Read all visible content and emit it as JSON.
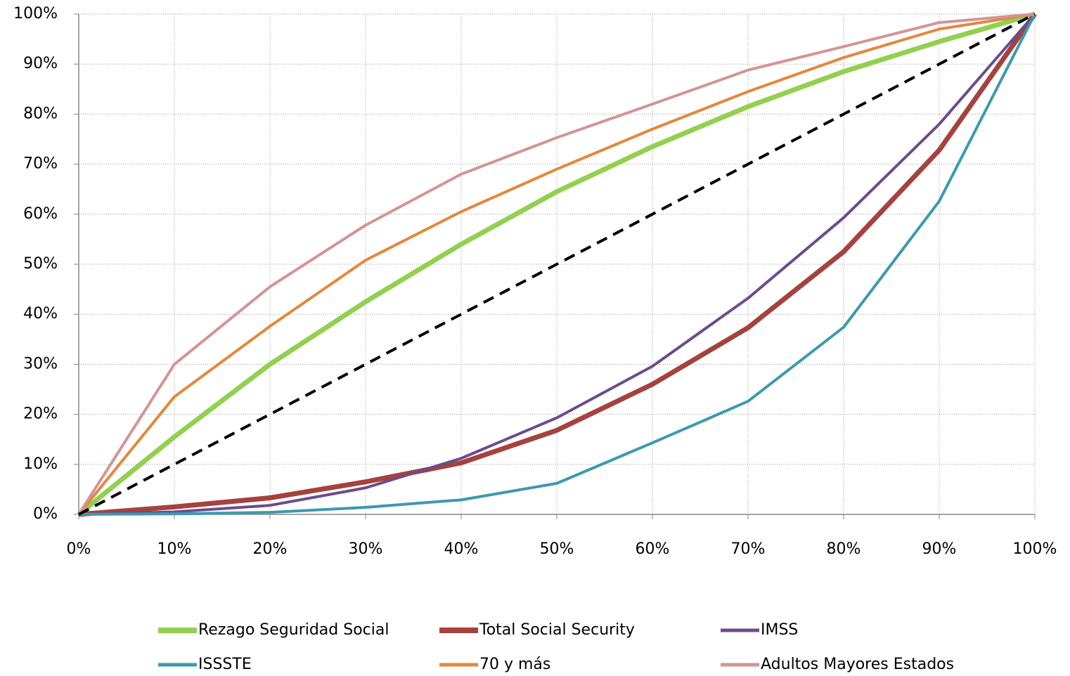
{
  "chart_data": {
    "type": "line",
    "x": [
      0,
      10,
      20,
      30,
      40,
      50,
      60,
      70,
      80,
      90,
      100
    ],
    "xlim": [
      0,
      100
    ],
    "xticks": [
      {
        "value": 0,
        "label": "0%"
      },
      {
        "value": 10,
        "label": "10%"
      },
      {
        "value": 20,
        "label": "20%"
      },
      {
        "value": 30,
        "label": "30%"
      },
      {
        "value": 40,
        "label": "40%"
      },
      {
        "value": 50,
        "label": "50%"
      },
      {
        "value": 60,
        "label": "60%"
      },
      {
        "value": 70,
        "label": "70%"
      },
      {
        "value": 80,
        "label": "80%"
      },
      {
        "value": 90,
        "label": "90%"
      },
      {
        "value": 100,
        "label": "100%"
      }
    ],
    "ylim": [
      0,
      100
    ],
    "yticks": [
      {
        "value": 0,
        "label": "0%"
      },
      {
        "value": 10,
        "label": "10%"
      },
      {
        "value": 20,
        "label": "20%"
      },
      {
        "value": 30,
        "label": "30%"
      },
      {
        "value": 40,
        "label": "40%"
      },
      {
        "value": 50,
        "label": "50%"
      },
      {
        "value": 60,
        "label": "60%"
      },
      {
        "value": 70,
        "label": "70%"
      },
      {
        "value": 80,
        "label": "80%"
      },
      {
        "value": 90,
        "label": "90%"
      },
      {
        "value": 100,
        "label": "100%"
      }
    ],
    "grid": true,
    "legend": "bottom",
    "series": [
      {
        "name": "Rezago Seguridad Social",
        "color": "#92d050",
        "width": 7,
        "values": [
          0,
          15.5,
          30,
          42.5,
          54,
          64.5,
          73.5,
          81.5,
          88.5,
          94.5,
          100
        ]
      },
      {
        "name": "Total Social Security",
        "color": "#a5423d",
        "width": 7,
        "values": [
          0,
          1.5,
          3.3,
          6.5,
          10.3,
          16.8,
          26,
          37.3,
          52.5,
          72.8,
          100
        ]
      },
      {
        "name": "IMSS",
        "color": "#6b4c8b",
        "width": 4,
        "values": [
          0,
          0.5,
          1.8,
          5.3,
          11.2,
          19.3,
          29.6,
          43.2,
          59.3,
          78,
          100
        ]
      },
      {
        "name": "ISSSTE",
        "color": "#3b9aaf",
        "width": 4,
        "values": [
          0,
          0.1,
          0.4,
          1.4,
          2.9,
          6.2,
          14.3,
          22.6,
          37.4,
          62.6,
          100
        ]
      },
      {
        "name": "70 y más",
        "color": "#e2893c",
        "width": 4,
        "values": [
          0,
          23.5,
          37.6,
          50.8,
          60.5,
          69,
          77,
          84.5,
          91.3,
          97,
          100
        ]
      },
      {
        "name": "Adultos Mayores Estados",
        "color": "#d49494",
        "width": 4,
        "values": [
          0,
          30,
          45.5,
          57.8,
          68,
          75.3,
          82,
          88.8,
          93.5,
          98.3,
          100
        ]
      }
    ],
    "equality_line": {
      "color": "#000000",
      "width": 4,
      "dashed": true,
      "values": [
        0,
        10,
        20,
        30,
        40,
        50,
        60,
        70,
        80,
        90,
        100
      ]
    }
  }
}
